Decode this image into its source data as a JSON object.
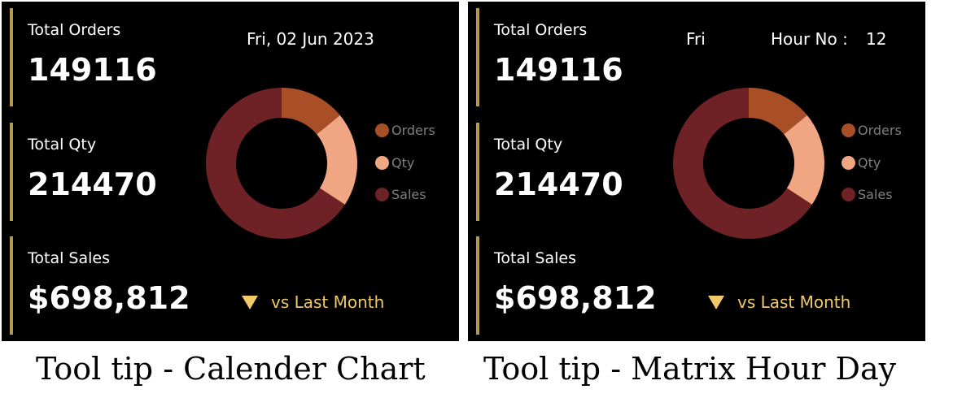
{
  "colors": {
    "background": "#000000",
    "accent_bar": "#b39a4c",
    "orders": "#a84f28",
    "qty": "#f0a583",
    "sales": "#6e2226",
    "trend": "#f0c96b",
    "legend_text": "#7f7f7f"
  },
  "left": {
    "cards": [
      {
        "label": "Total Orders",
        "value": "149116"
      },
      {
        "label": "Total Qty",
        "value": "214470"
      },
      {
        "label": "Total Sales",
        "value": "$698,812"
      }
    ],
    "header": {
      "date": "Fri, 02 Jun 2023"
    },
    "trend": {
      "icon": "down-triangle-icon",
      "label": "vs Last Month"
    },
    "caption": "Tool tip - Calender Chart"
  },
  "right": {
    "cards": [
      {
        "label": "Total Orders",
        "value": "149116"
      },
      {
        "label": "Total Qty",
        "value": "214470"
      },
      {
        "label": "Total Sales",
        "value": "$698,812"
      }
    ],
    "header": {
      "day": "Fri",
      "hour_label": "Hour No :",
      "hour_value": "12"
    },
    "trend": {
      "icon": "down-triangle-icon",
      "label": "vs Last Month"
    },
    "caption": "Tool tip - Matrix Hour Day"
  },
  "chart_data": [
    {
      "type": "pie",
      "categories": [
        "Orders",
        "Qty",
        "Sales"
      ],
      "values": [
        149116,
        214470,
        698812
      ],
      "legend": [
        "Orders",
        "Qty",
        "Sales"
      ],
      "legend_position": "right",
      "colors": [
        "#a84f28",
        "#f0a583",
        "#6e2226"
      ]
    },
    {
      "type": "pie",
      "categories": [
        "Orders",
        "Qty",
        "Sales"
      ],
      "values": [
        149116,
        214470,
        698812
      ],
      "legend": [
        "Orders",
        "Qty",
        "Sales"
      ],
      "legend_position": "right",
      "colors": [
        "#a84f28",
        "#f0a583",
        "#6e2226"
      ]
    }
  ]
}
